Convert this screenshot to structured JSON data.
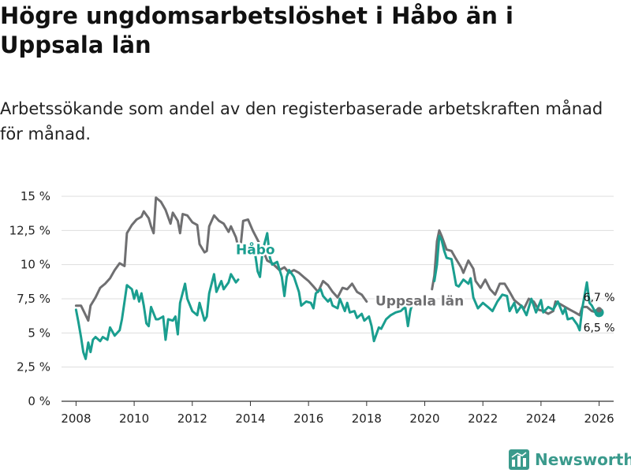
{
  "title": "Högre ungdomsarbetslöshet i Håbo än i Uppsala län",
  "subtitle": "Arbetssökande som andel av den registerbaserade arbetskraften månad för månad.",
  "brand": {
    "name": "Newsworthy",
    "icon": "bar-chart-logo-icon",
    "color": "#3a9a8c"
  },
  "colors": {
    "habo": "#1a9e8f",
    "uppsala": "#6f6f71",
    "grid": "#dddddd",
    "axis": "#333333"
  },
  "chart_data": {
    "type": "line",
    "title": "Högre ungdomsarbetslöshet i Håbo än i Uppsala län",
    "subtitle": "Arbetssökande som andel av den registerbaserade arbetskraften månad för månad.",
    "xlabel": "",
    "ylabel": "",
    "xlim": [
      2007.5,
      2026.5
    ],
    "ylim": [
      0,
      15
    ],
    "grid": "horizontal",
    "x_ticks": [
      2008,
      2010,
      2012,
      2014,
      2016,
      2018,
      2020,
      2022,
      2024,
      2026
    ],
    "x_tick_labels": [
      "2008",
      "2010",
      "2012",
      "2014",
      "2016",
      "2018",
      "2020",
      "2022",
      "2024",
      "2026"
    ],
    "y_ticks": [
      0,
      2.5,
      5,
      7.5,
      10,
      12.5,
      15
    ],
    "y_tick_labels": [
      "0 %",
      "2,5 %",
      "5 %",
      "7,5 %",
      "10 %",
      "12,5 %",
      "15 %"
    ],
    "series": [
      {
        "name": "Uppsala län",
        "color": "#6f6f71",
        "inline_label": "Uppsala län",
        "points": [
          [
            2008.0,
            7.0
          ],
          [
            2008.17,
            7.0
          ],
          [
            2008.33,
            6.3
          ],
          [
            2008.42,
            5.9
          ],
          [
            2008.5,
            7.0
          ],
          [
            2008.67,
            7.6
          ],
          [
            2008.83,
            8.3
          ],
          [
            2009.0,
            8.6
          ],
          [
            2009.17,
            9.0
          ],
          [
            2009.33,
            9.6
          ],
          [
            2009.5,
            10.1
          ],
          [
            2009.67,
            9.9
          ],
          [
            2009.75,
            12.3
          ],
          [
            2009.92,
            12.9
          ],
          [
            2010.08,
            13.3
          ],
          [
            2010.25,
            13.5
          ],
          [
            2010.33,
            13.9
          ],
          [
            2010.5,
            13.4
          ],
          [
            2010.58,
            12.8
          ],
          [
            2010.67,
            12.3
          ],
          [
            2010.75,
            14.9
          ],
          [
            2010.92,
            14.6
          ],
          [
            2011.08,
            14.0
          ],
          [
            2011.25,
            13.0
          ],
          [
            2011.33,
            13.8
          ],
          [
            2011.5,
            13.2
          ],
          [
            2011.58,
            12.3
          ],
          [
            2011.67,
            13.7
          ],
          [
            2011.83,
            13.6
          ],
          [
            2012.0,
            13.1
          ],
          [
            2012.17,
            12.9
          ],
          [
            2012.25,
            11.5
          ],
          [
            2012.42,
            10.9
          ],
          [
            2012.5,
            11.0
          ],
          [
            2012.58,
            12.8
          ],
          [
            2012.75,
            13.6
          ],
          [
            2012.92,
            13.2
          ],
          [
            2013.08,
            13.0
          ],
          [
            2013.25,
            12.4
          ],
          [
            2013.33,
            12.8
          ],
          [
            2013.5,
            12.0
          ],
          [
            2013.58,
            11.3
          ],
          [
            2013.67,
            11.5
          ],
          [
            2013.75,
            13.2
          ],
          [
            2013.92,
            13.3
          ],
          [
            2014.08,
            12.5
          ],
          [
            2014.25,
            11.8
          ],
          [
            2014.42,
            11.1
          ],
          [
            2014.58,
            10.3
          ],
          [
            2014.75,
            10.1
          ],
          [
            2015.0,
            9.6
          ],
          [
            2015.17,
            9.8
          ],
          [
            2015.33,
            9.4
          ],
          [
            2015.5,
            9.6
          ],
          [
            2015.67,
            9.4
          ],
          [
            2015.83,
            9.1
          ],
          [
            2016.0,
            8.8
          ],
          [
            2016.17,
            8.4
          ],
          [
            2016.33,
            8.0
          ],
          [
            2016.5,
            8.8
          ],
          [
            2016.67,
            8.5
          ],
          [
            2016.83,
            8.0
          ],
          [
            2017.0,
            7.6
          ],
          [
            2017.17,
            8.3
          ],
          [
            2017.33,
            8.2
          ],
          [
            2017.5,
            8.6
          ],
          [
            2017.67,
            8.0
          ],
          [
            2017.83,
            7.8
          ],
          [
            2018.0,
            7.3
          ]
        ],
        "segments_after_label": [
          [
            2020.25,
            8.2
          ],
          [
            2020.33,
            9.2
          ],
          [
            2020.42,
            11.7
          ],
          [
            2020.5,
            12.5
          ],
          [
            2020.58,
            12.1
          ],
          [
            2020.75,
            11.1
          ],
          [
            2020.92,
            11.0
          ],
          [
            2021.08,
            10.4
          ],
          [
            2021.25,
            9.8
          ],
          [
            2021.33,
            9.4
          ],
          [
            2021.5,
            10.3
          ],
          [
            2021.67,
            9.7
          ],
          [
            2021.75,
            8.8
          ],
          [
            2021.92,
            8.3
          ],
          [
            2022.08,
            8.9
          ],
          [
            2022.25,
            8.2
          ],
          [
            2022.42,
            7.8
          ],
          [
            2022.58,
            8.6
          ],
          [
            2022.75,
            8.6
          ],
          [
            2022.92,
            8.0
          ],
          [
            2023.08,
            7.4
          ],
          [
            2023.25,
            7.1
          ],
          [
            2023.42,
            6.8
          ],
          [
            2023.58,
            7.5
          ],
          [
            2023.75,
            7.3
          ],
          [
            2023.92,
            6.7
          ],
          [
            2024.08,
            6.6
          ],
          [
            2024.25,
            6.4
          ],
          [
            2024.42,
            6.6
          ],
          [
            2024.5,
            7.3
          ],
          [
            2024.67,
            7.1
          ],
          [
            2024.83,
            6.9
          ],
          [
            2025.0,
            6.7
          ],
          [
            2025.17,
            6.5
          ],
          [
            2025.33,
            6.3
          ],
          [
            2025.42,
            6.9
          ],
          [
            2025.58,
            6.9
          ],
          [
            2025.75,
            6.6
          ],
          [
            2025.92,
            6.5
          ],
          [
            2026.0,
            6.7
          ]
        ],
        "end_value": 6.7,
        "end_label": "6,7 %"
      },
      {
        "name": "Håbo",
        "color": "#1a9e8f",
        "inline_label": "Håbo",
        "points": [
          [
            2008.0,
            6.7
          ],
          [
            2008.08,
            5.8
          ],
          [
            2008.17,
            4.7
          ],
          [
            2008.25,
            3.6
          ],
          [
            2008.33,
            3.1
          ],
          [
            2008.42,
            4.3
          ],
          [
            2008.5,
            3.6
          ],
          [
            2008.58,
            4.5
          ],
          [
            2008.67,
            4.7
          ],
          [
            2008.83,
            4.4
          ],
          [
            2008.92,
            4.7
          ],
          [
            2009.08,
            4.5
          ],
          [
            2009.17,
            5.4
          ],
          [
            2009.33,
            4.8
          ],
          [
            2009.5,
            5.2
          ],
          [
            2009.58,
            6.0
          ],
          [
            2009.67,
            7.3
          ],
          [
            2009.75,
            8.5
          ],
          [
            2009.92,
            8.2
          ],
          [
            2010.0,
            7.5
          ],
          [
            2010.08,
            8.1
          ],
          [
            2010.17,
            7.3
          ],
          [
            2010.25,
            7.9
          ],
          [
            2010.33,
            7.0
          ],
          [
            2010.42,
            5.7
          ],
          [
            2010.5,
            5.5
          ],
          [
            2010.58,
            6.9
          ],
          [
            2010.75,
            6.0
          ],
          [
            2010.83,
            6.0
          ],
          [
            2011.0,
            6.2
          ],
          [
            2011.08,
            4.5
          ],
          [
            2011.17,
            6.0
          ],
          [
            2011.33,
            5.9
          ],
          [
            2011.42,
            6.2
          ],
          [
            2011.5,
            4.9
          ],
          [
            2011.58,
            7.2
          ],
          [
            2011.75,
            8.6
          ],
          [
            2011.83,
            7.5
          ],
          [
            2012.0,
            6.6
          ],
          [
            2012.17,
            6.3
          ],
          [
            2012.25,
            7.2
          ],
          [
            2012.33,
            6.6
          ],
          [
            2012.42,
            5.9
          ],
          [
            2012.5,
            6.2
          ],
          [
            2012.58,
            7.9
          ],
          [
            2012.75,
            9.3
          ],
          [
            2012.83,
            8.0
          ],
          [
            2013.0,
            8.8
          ],
          [
            2013.08,
            8.2
          ],
          [
            2013.25,
            8.7
          ],
          [
            2013.33,
            9.3
          ],
          [
            2013.5,
            8.7
          ],
          [
            2013.58,
            8.9
          ]
        ],
        "segments_after_label": [
          [
            2014.17,
            10.7
          ],
          [
            2014.25,
            9.5
          ],
          [
            2014.33,
            9.1
          ],
          [
            2014.42,
            11.0
          ],
          [
            2014.58,
            12.3
          ],
          [
            2014.67,
            10.5
          ],
          [
            2014.75,
            10.0
          ],
          [
            2014.92,
            10.2
          ],
          [
            2015.08,
            9.1
          ],
          [
            2015.17,
            7.7
          ],
          [
            2015.25,
            9.1
          ],
          [
            2015.33,
            9.6
          ],
          [
            2015.5,
            9.1
          ],
          [
            2015.67,
            8.0
          ],
          [
            2015.75,
            7.0
          ],
          [
            2015.92,
            7.3
          ],
          [
            2016.08,
            7.2
          ],
          [
            2016.17,
            6.8
          ],
          [
            2016.25,
            7.9
          ],
          [
            2016.42,
            8.2
          ],
          [
            2016.5,
            7.7
          ],
          [
            2016.67,
            7.3
          ],
          [
            2016.75,
            7.5
          ],
          [
            2016.83,
            7.0
          ],
          [
            2017.0,
            6.8
          ],
          [
            2017.08,
            7.5
          ],
          [
            2017.25,
            6.6
          ],
          [
            2017.33,
            7.2
          ],
          [
            2017.42,
            6.5
          ],
          [
            2017.58,
            6.6
          ],
          [
            2017.67,
            6.1
          ],
          [
            2017.83,
            6.4
          ],
          [
            2017.92,
            5.9
          ],
          [
            2018.08,
            6.2
          ],
          [
            2018.17,
            5.5
          ],
          [
            2018.25,
            4.4
          ],
          [
            2018.42,
            5.4
          ],
          [
            2018.5,
            5.3
          ],
          [
            2018.67,
            6.0
          ],
          [
            2018.83,
            6.3
          ],
          [
            2019.0,
            6.5
          ],
          [
            2019.17,
            6.6
          ],
          [
            2019.33,
            6.9
          ],
          [
            2019.42,
            5.5
          ],
          [
            2019.5,
            6.6
          ],
          [
            2019.58,
            7.2
          ]
        ],
        "tail": [
          [
            2020.33,
            8.8
          ],
          [
            2020.42,
            10.0
          ],
          [
            2020.5,
            12.1
          ],
          [
            2020.58,
            11.8
          ],
          [
            2020.67,
            11.0
          ],
          [
            2020.75,
            10.5
          ],
          [
            2020.92,
            10.4
          ],
          [
            2021.08,
            8.5
          ],
          [
            2021.17,
            8.4
          ],
          [
            2021.33,
            8.9
          ],
          [
            2021.5,
            8.6
          ],
          [
            2021.58,
            9.0
          ],
          [
            2021.67,
            7.6
          ],
          [
            2021.83,
            6.8
          ],
          [
            2022.0,
            7.2
          ],
          [
            2022.17,
            6.9
          ],
          [
            2022.33,
            6.6
          ],
          [
            2022.5,
            7.3
          ],
          [
            2022.67,
            7.8
          ],
          [
            2022.83,
            7.7
          ],
          [
            2022.92,
            6.6
          ],
          [
            2023.08,
            7.2
          ],
          [
            2023.17,
            6.5
          ],
          [
            2023.33,
            7.0
          ],
          [
            2023.5,
            6.3
          ],
          [
            2023.67,
            7.5
          ],
          [
            2023.75,
            7.0
          ],
          [
            2023.83,
            6.5
          ],
          [
            2024.0,
            7.4
          ],
          [
            2024.08,
            6.5
          ],
          [
            2024.25,
            6.9
          ],
          [
            2024.42,
            6.7
          ],
          [
            2024.58,
            7.3
          ],
          [
            2024.75,
            6.4
          ],
          [
            2024.83,
            6.8
          ],
          [
            2024.92,
            6.0
          ],
          [
            2025.08,
            6.1
          ],
          [
            2025.25,
            5.6
          ],
          [
            2025.33,
            5.2
          ],
          [
            2025.42,
            6.8
          ],
          [
            2025.58,
            8.7
          ],
          [
            2025.67,
            7.2
          ],
          [
            2025.75,
            7.0
          ],
          [
            2025.92,
            6.3
          ],
          [
            2026.0,
            6.5
          ]
        ],
        "end_value": 6.5,
        "end_label": "6,5 %"
      }
    ]
  }
}
